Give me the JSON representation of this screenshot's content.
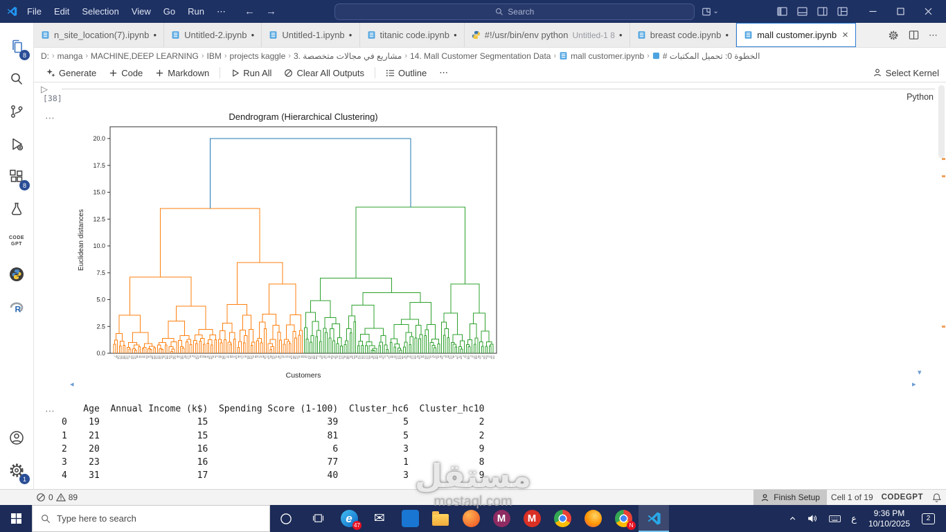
{
  "titlebar": {
    "menus": [
      "File",
      "Edit",
      "Selection",
      "View",
      "Go",
      "Run",
      "⋯"
    ],
    "search_label": "Search"
  },
  "icons": {
    "back": "←",
    "forward": "→",
    "chevron_down": "⌄",
    "chevron_up": "⌃",
    "ellipsis": "⋯",
    "modified_dot": "●",
    "close": "×",
    "separator": "›",
    "run_collapsed": "▷",
    "scroll_left": "◂",
    "scroll_right": "▸",
    "scroll_down": "▾",
    "mail_glyph": "✉"
  },
  "tabs": {
    "items": [
      {
        "label": "n_site_location(7).ipynb",
        "icon": "notebook",
        "modified": true
      },
      {
        "label": "Untitled-2.ipynb",
        "icon": "notebook",
        "modified": true
      },
      {
        "label": "Untitled-1.ipynb",
        "icon": "notebook",
        "modified": true
      },
      {
        "label": "titanic code.ipynb",
        "icon": "notebook",
        "modified": true
      },
      {
        "label": "#!/usr/bin/env python",
        "detail": "Untitled-1 8",
        "icon": "python",
        "modified": true
      },
      {
        "label": "breast code.ipynb",
        "icon": "notebook",
        "modified": true
      },
      {
        "label": "mall customer.ipynb",
        "icon": "notebook",
        "active": true
      }
    ]
  },
  "breadcrumbs": {
    "items": [
      "D:",
      "manga",
      "MACHINE,DEEP LEARNING",
      "IBM",
      "projects kaggle",
      "3. مشاريع في مجالات متخصصة",
      "14. Mall Customer Segmentation Data",
      "mall customer.ipynb",
      "# الخطوة 0: تحميل المكتبات"
    ]
  },
  "nb_toolbar": {
    "generate": "Generate",
    "code": "Code",
    "markdown": "Markdown",
    "run_all": "Run All",
    "clear": "Clear All Outputs",
    "outline": "Outline",
    "more": "⋯",
    "select_kernel": "Select Kernel"
  },
  "activity": {
    "explorer_badge": "8",
    "extensions_badge": "8",
    "settings_badge": "1",
    "codegpt_line1": "CODE",
    "codegpt_line2": "GPT"
  },
  "cell": {
    "exec_count": "[38]",
    "language": "Python"
  },
  "chart_data": {
    "type": "dendrogram",
    "title": "Dendrogram (Hierarchical Clustering)",
    "xlabel": "Customers",
    "ylabel": "Euclidean distances",
    "ylim": [
      0,
      21
    ],
    "yticks": [
      0.0,
      2.5,
      5.0,
      7.5,
      10.0,
      12.5,
      15.0,
      17.5,
      20.0
    ],
    "n_leaves": 200,
    "root_height": 20.0,
    "link_color_above_threshold": "#1f77b4",
    "clusters": [
      {
        "side": "left",
        "color": "#ff7f0e",
        "root_height": 13.5,
        "n_leaves": 100
      },
      {
        "side": "right",
        "color": "#2ca02c",
        "root_height": 13.6,
        "n_leaves": 100
      }
    ],
    "legend": "none",
    "grid": false
  },
  "table_output": {
    "index": [
      "0",
      "1",
      "2",
      "3",
      "4"
    ],
    "columns": [
      "Age",
      "Annual Income (k$)",
      "Spending Score (1-100)",
      "Cluster_hc6",
      "Cluster_hc10"
    ],
    "rows": [
      [
        19,
        15,
        39,
        5,
        2
      ],
      [
        21,
        15,
        81,
        5,
        2
      ],
      [
        20,
        16,
        6,
        3,
        9
      ],
      [
        23,
        16,
        77,
        1,
        8
      ],
      [
        31,
        17,
        40,
        3,
        9
      ]
    ]
  },
  "statusbar": {
    "errors": "0",
    "warnings": "89",
    "finish_setup": "Finish Setup",
    "cell_position": "Cell 1 of 19",
    "codegpt": "CODEGPT"
  },
  "taskbar": {
    "search_placeholder": "Type here to search",
    "apps": [
      {
        "name": "edge",
        "letter": "e",
        "badge": "47"
      },
      {
        "name": "mail",
        "glyph": "mail_glyph"
      },
      {
        "name": "blue-tile"
      },
      {
        "name": "file-explorer"
      },
      {
        "name": "browser-orange"
      },
      {
        "name": "m-purple",
        "letter": "M"
      },
      {
        "name": "gmail",
        "letter": "M"
      },
      {
        "name": "chrome"
      },
      {
        "name": "firefox"
      },
      {
        "name": "chrome-n",
        "badge": "N"
      },
      {
        "name": "vscode",
        "active": true
      }
    ],
    "tray": {
      "language": "ع",
      "time": "9:36 PM",
      "date": "10/10/2025",
      "notif_count": "2"
    }
  },
  "watermark": {
    "title": "مستقل",
    "domain": "mostaql.com"
  }
}
